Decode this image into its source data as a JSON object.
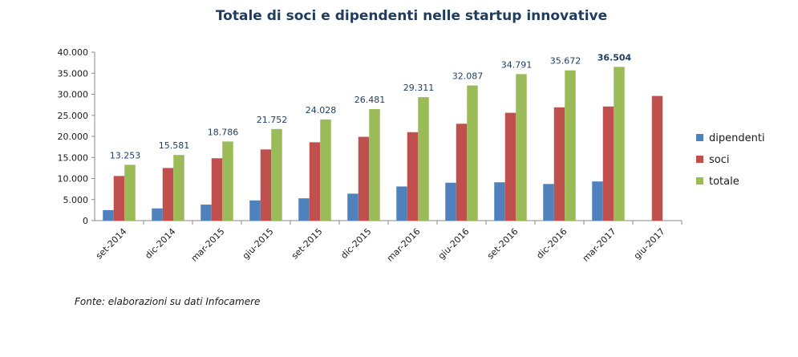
{
  "chart_data": {
    "type": "bar",
    "title": "Totale di soci e dipendenti nelle startup innovative",
    "source": "Fonte: elaborazioni su dati Infocamere",
    "xlabel": "",
    "ylabel": "",
    "ylim": [
      0,
      40000
    ],
    "yticks": [
      0,
      5000,
      10000,
      15000,
      20000,
      25000,
      30000,
      35000,
      40000
    ],
    "ytick_labels": [
      "0",
      "5.000",
      "10.000",
      "15.000",
      "20.000",
      "25.000",
      "30.000",
      "35.000",
      "40.000"
    ],
    "grid": false,
    "legend_position": "right",
    "categories": [
      "set-2014",
      "dic-2014",
      "mar-2015",
      "giu-2015",
      "set-2015",
      "dic-2015",
      "mar-2016",
      "giu-2016",
      "set-2016",
      "dic-2016",
      "mar-2017",
      "giu-2017"
    ],
    "series": [
      {
        "name": "dipendenti",
        "color": "#4f81bd",
        "values": [
          2500,
          2900,
          3800,
          4800,
          5300,
          6400,
          8100,
          9000,
          9100,
          8700,
          9300,
          null
        ]
      },
      {
        "name": "soci",
        "color": "#c0504d",
        "values": [
          10600,
          12500,
          14800,
          16900,
          18600,
          19900,
          21000,
          23000,
          25600,
          26900,
          27100,
          29600
        ]
      },
      {
        "name": "totale",
        "color": "#9bbb59",
        "values": [
          13253,
          15581,
          18786,
          21752,
          24028,
          26481,
          29311,
          32087,
          34791,
          35672,
          36504,
          null
        ]
      }
    ],
    "data_labels": [
      "13.253",
      "15.581",
      "18.786",
      "21.752",
      "24.028",
      "26.481",
      "29.311",
      "32.087",
      "34.791",
      "35.672",
      "36.504",
      null
    ],
    "highlighted_label_index": 10
  }
}
